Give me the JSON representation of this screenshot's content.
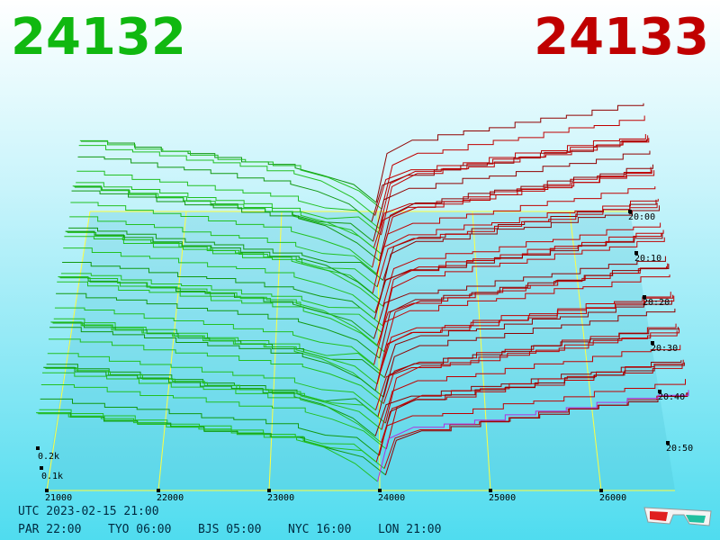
{
  "prices": {
    "bid": "24132",
    "ask": "24133"
  },
  "price_axis": [
    "21000",
    "22000",
    "23000",
    "24000",
    "25000",
    "26000"
  ],
  "time_axis": [
    "20:00",
    "20:10",
    "20:20",
    "20:30",
    "20:40",
    "20:50"
  ],
  "depth_axis": [
    "0.2k",
    "0.1k"
  ],
  "footer": {
    "utc": "UTC 2023-02-15 21:00",
    "cities": [
      "PAR 22:00",
      "TYO 06:00",
      "BJS 05:00",
      "NYC 16:00",
      "LON 21:00"
    ]
  }
}
